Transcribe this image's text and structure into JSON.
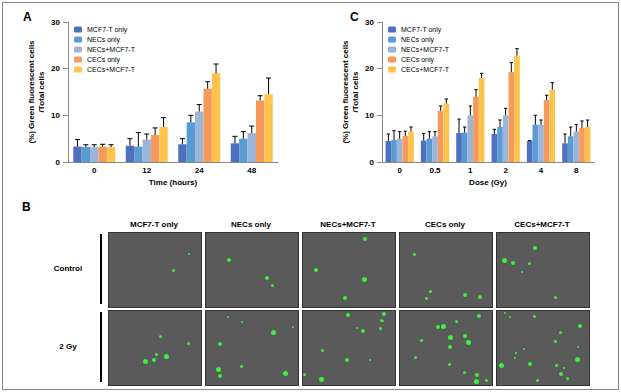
{
  "chart_data": [
    {
      "type": "bar",
      "title": "A",
      "xlabel": "Time (hours)",
      "ylabel": "(%) Green fluorescent cells\n/Total cells",
      "categories": [
        "0",
        "12",
        "24",
        "48"
      ],
      "ylim": [
        0,
        30
      ],
      "yticks": [
        0,
        10,
        20,
        30
      ],
      "grid": false,
      "legend": "upper left",
      "series": [
        {
          "name": "MCF7-T only",
          "color": "#4f6fbf",
          "values": [
            3.3,
            3.5,
            3.8,
            4.0
          ],
          "errors": [
            1.5,
            1.5,
            1.2,
            1.5
          ]
        },
        {
          "name": "NECs only",
          "color": "#5b9bd5",
          "values": [
            3.2,
            3.3,
            8.5,
            5.0
          ],
          "errors": [
            0.5,
            3.0,
            1.5,
            1.5
          ]
        },
        {
          "name": "NECs+MCF7-T",
          "color": "#9bb5d8",
          "values": [
            3.2,
            4.8,
            10.8,
            6.2
          ],
          "errors": [
            0.5,
            1.2,
            1.5,
            1.5
          ]
        },
        {
          "name": "CECs only",
          "color": "#f59a5a",
          "values": [
            3.3,
            5.8,
            15.7,
            13.2
          ],
          "errors": [
            0.5,
            1.5,
            1.5,
            1.0
          ]
        },
        {
          "name": "CECs+MCF7-T",
          "color": "#ffc34d",
          "values": [
            3.2,
            7.5,
            19.0,
            14.5
          ],
          "errors": [
            0.5,
            2.0,
            2.0,
            3.5
          ]
        }
      ]
    },
    {
      "type": "bar",
      "title": "C",
      "xlabel": "Dose (Gy)",
      "ylabel": "(%) Green fluorescent cells\n/Total cells",
      "categories": [
        "0",
        "0.5",
        "1",
        "2",
        "4",
        "8"
      ],
      "ylim": [
        0,
        30
      ],
      "yticks": [
        0,
        10,
        20,
        30
      ],
      "grid": false,
      "legend": "upper left",
      "series": [
        {
          "name": "MCF7-T only",
          "color": "#4f6fbf",
          "values": [
            4.5,
            4.6,
            6.2,
            6.0,
            4.5,
            4.0
          ],
          "errors": [
            1.5,
            1.5,
            3.0,
            1.0,
            0.1,
            2.0
          ]
        },
        {
          "name": "NECs only",
          "color": "#5b9bd5",
          "values": [
            4.7,
            5.0,
            6.3,
            7.5,
            8.0,
            5.5
          ],
          "errors": [
            2.0,
            1.5,
            1.2,
            1.5,
            2.0,
            2.0
          ]
        },
        {
          "name": "NECs+MCF7-T",
          "color": "#9bb5d8",
          "values": [
            5.0,
            5.5,
            10.0,
            10.0,
            8.0,
            6.5
          ],
          "errors": [
            1.5,
            1.0,
            2.0,
            1.5,
            1.0,
            1.5
          ]
        },
        {
          "name": "CECs only",
          "color": "#f59a5a",
          "values": [
            5.6,
            11.0,
            14.0,
            19.3,
            13.3,
            7.3
          ],
          "errors": [
            1.0,
            1.0,
            1.5,
            2.0,
            1.0,
            1.5
          ]
        },
        {
          "name": "CECs+MCF7-T",
          "color": "#ffc34d",
          "values": [
            6.5,
            12.5,
            18.0,
            22.8,
            15.5,
            7.5
          ],
          "errors": [
            1.0,
            1.0,
            1.0,
            1.5,
            1.5,
            1.5
          ]
        }
      ]
    }
  ],
  "panel_b": {
    "title": "B",
    "columns": [
      "MCF7-T only",
      "NECs only",
      "NECs+MCF7-T",
      "CECs only",
      "CECs+MCF7-T"
    ],
    "rows": [
      "Control",
      "2 Gy"
    ]
  }
}
